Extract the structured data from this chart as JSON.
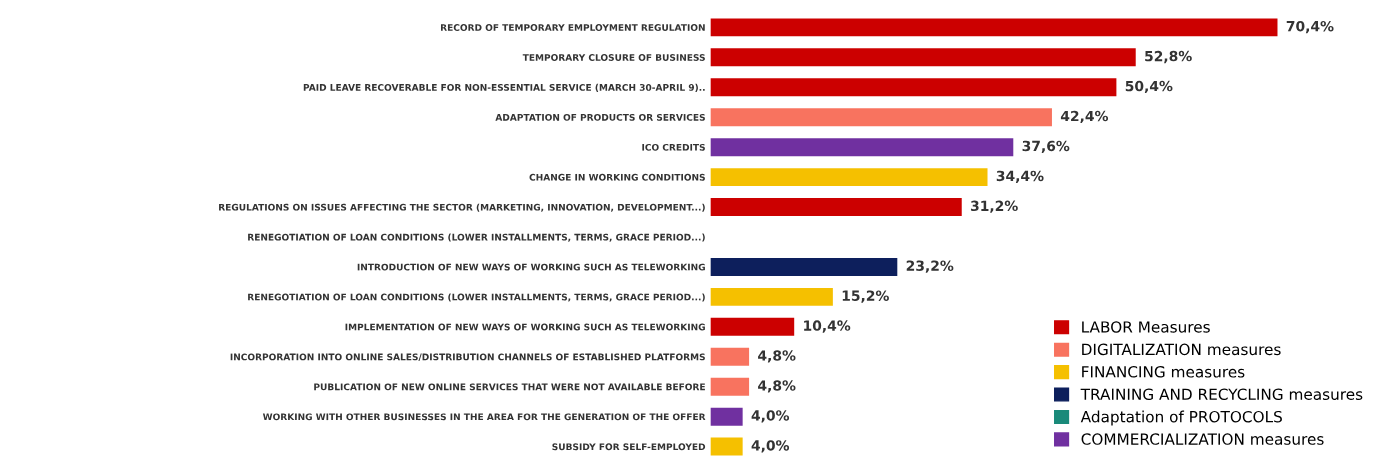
{
  "chart_data": {
    "type": "bar",
    "orientation": "horizontal",
    "stacked": true,
    "legend": "bottom right",
    "categories": [
      "RECORD OF TEMPORARY EMPLOYMENT REGULATION",
      "TEMPORARY CLOSURE OF BUSINESS",
      "PAID LEAVE RECOVERABLE FOR NON-ESSENTIAL SERVICE (MARCH 30-APRIL 9)..",
      "ADAPTATION OF PRODUCTS OR SERVICES",
      "ICO CREDITS",
      "CHANGE IN WORKING CONDITIONS",
      "REGULATIONS ON ISSUES AFFECTING THE SECTOR (MARKETING, INNOVATION, DEVELOPMENT...)",
      "RENEGOTIATION OF LOAN CONDITIONS (LOWER INSTALLMENTS, TERMS, GRACE PERIOD...)",
      "INTRODUCTION OF NEW WAYS OF WORKING SUCH AS TELEWORKING",
      "RENEGOTIATION OF LOAN CONDITIONS (LOWER INSTALLMENTS, TERMS, GRACE PERIOD...)",
      "IMPLEMENTATION OF NEW WAYS OF WORKING SUCH AS TELEWORKING",
      "INCORPORATION INTO ONLINE SALES/DISTRIBUTION CHANNELS OF ESTABLISHED PLATFORMS",
      "PUBLICATION OF NEW ONLINE SERVICES THAT WERE NOT AVAILABLE BEFORE",
      "WORKING WITH OTHER BUSINESSES IN THE AREA FOR THE GENERATION OF THE OFFER",
      "SUBSIDY FOR SELF-EMPLOYED"
    ],
    "series": [
      {
        "name": "LABOR Measures",
        "color": "#cc0000",
        "values": [
          70.4,
          52.8,
          50.4,
          null,
          null,
          null,
          31.2,
          null,
          null,
          null,
          10.4,
          null,
          null,
          null,
          null
        ],
        "value_labels": [
          "70,4%",
          "52,8%",
          "50,4%",
          null,
          null,
          null,
          "31,2%",
          null,
          null,
          null,
          "10,4%",
          null,
          null,
          null,
          null
        ]
      },
      {
        "name": "DIGITALIZATION measures",
        "color": "#f8735f",
        "values": [
          null,
          null,
          null,
          42.4,
          null,
          null,
          null,
          null,
          null,
          null,
          null,
          4.8,
          4.8,
          null,
          null
        ],
        "value_labels": [
          null,
          null,
          null,
          "42,4%",
          null,
          null,
          null,
          null,
          null,
          null,
          null,
          "4,8%",
          "4,8%",
          null,
          null
        ]
      },
      {
        "name": "FINANCING measures",
        "color": "#f5c000",
        "values": [
          null,
          null,
          null,
          null,
          null,
          34.4,
          null,
          null,
          null,
          15.2,
          null,
          null,
          null,
          null,
          4.0
        ],
        "value_labels": [
          null,
          null,
          null,
          null,
          null,
          "34,4%",
          null,
          null,
          null,
          "15,2%",
          null,
          null,
          null,
          null,
          "4,0%"
        ]
      },
      {
        "name": "TRAINING AND RECYCLING measures",
        "color": "#0d1f5c",
        "values": [
          null,
          null,
          null,
          null,
          null,
          null,
          null,
          null,
          23.2,
          null,
          null,
          null,
          null,
          null,
          null
        ],
        "value_labels": [
          null,
          null,
          null,
          null,
          null,
          null,
          null,
          null,
          "23,2%",
          null,
          null,
          null,
          null,
          null,
          null
        ]
      },
      {
        "name": "Adaptation of PROTOCOLS",
        "color": "#1a8a7a",
        "values": [
          null,
          null,
          null,
          null,
          null,
          null,
          null,
          null,
          null,
          null,
          null,
          null,
          null,
          null,
          null
        ]
      },
      {
        "name": "COMMERCIALIZATION measures",
        "color": "#7030a0",
        "values": [
          null,
          null,
          null,
          null,
          37.6,
          null,
          null,
          null,
          null,
          null,
          null,
          null,
          null,
          4.0,
          null
        ],
        "value_labels": [
          null,
          null,
          null,
          null,
          "37,6%",
          null,
          null,
          null,
          null,
          null,
          null,
          null,
          null,
          "4,0%",
          null
        ]
      }
    ]
  }
}
